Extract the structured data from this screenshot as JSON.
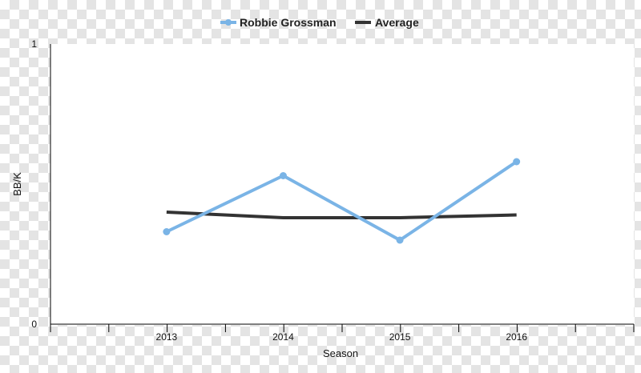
{
  "chart_data": {
    "type": "line",
    "title": "",
    "xlabel": "Season",
    "ylabel": "BB/K",
    "categories": [
      "2013",
      "2014",
      "2015",
      "2016"
    ],
    "ylim": [
      0,
      1
    ],
    "y_tick_labels": [
      "0",
      "1"
    ],
    "series": [
      {
        "name": "Robbie Grossman",
        "color": "#7ab4e6",
        "markers": true,
        "values": [
          0.33,
          0.53,
          0.3,
          0.58
        ]
      },
      {
        "name": "Average",
        "color": "#333333",
        "markers": false,
        "values": [
          0.4,
          0.38,
          0.38,
          0.39
        ]
      }
    ],
    "legend_position": "top-center",
    "grid": false
  }
}
